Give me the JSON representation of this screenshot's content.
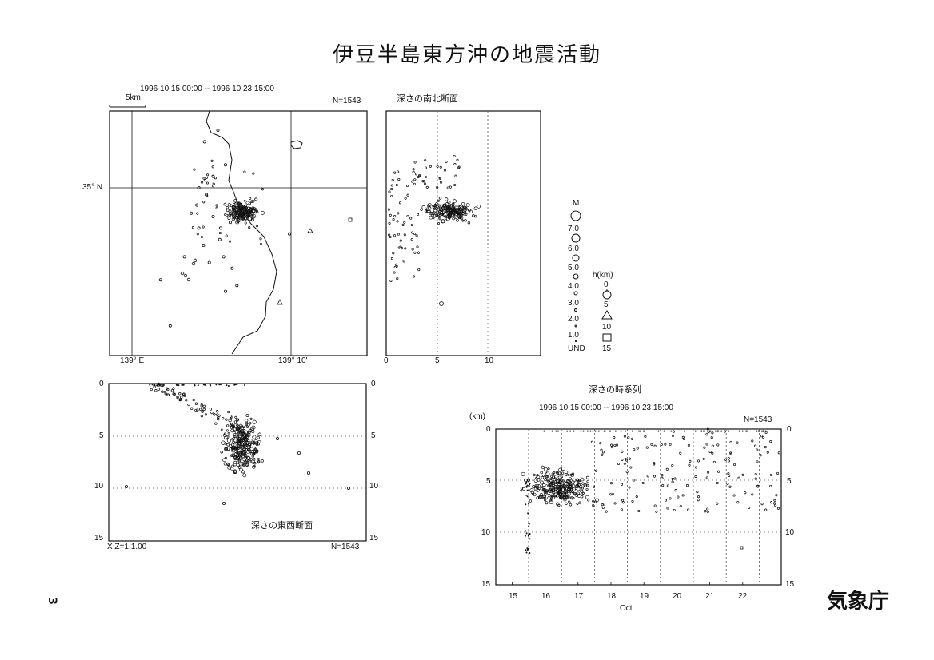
{
  "page": {
    "title": "伊豆半島東方沖の地震活動",
    "agency": "気象庁",
    "page_number": "3"
  },
  "colors": {
    "ink": "#111111",
    "paper": "#ffffff",
    "grid": "#555555"
  },
  "chart_data": [
    {
      "type": "scatter",
      "panel": "epicenter-map",
      "period": "1996 10 15 00:00 -- 1996 10 23 15:00",
      "count": "N=1543",
      "scale_bar": "5km",
      "lat_label": "35° N",
      "lon_labels": [
        "139° E",
        "139° 10'"
      ],
      "points": [
        [
          139.085,
          35.01
        ],
        [
          139.07,
          35.0
        ],
        [
          139.076,
          35.04
        ],
        [
          139.068,
          34.985
        ],
        [
          139.09,
          35.05
        ],
        [
          139.098,
          35.02
        ],
        [
          139.103,
          34.97
        ],
        [
          139.092,
          34.955
        ],
        [
          139.081,
          34.935
        ],
        [
          139.075,
          34.95
        ],
        [
          139.096,
          34.94
        ],
        [
          139.11,
          34.915
        ],
        [
          139.165,
          34.96
        ],
        [
          139.13,
          34.99
        ],
        [
          139.04,
          34.88
        ],
        [
          139.03,
          34.92
        ],
        [
          139.055,
          34.94
        ],
        [
          139.062,
          34.978
        ],
        [
          139.105,
          34.93
        ],
        [
          139.07,
          34.965
        ],
        [
          139.085,
          34.975
        ],
        [
          139.098,
          34.91
        ],
        [
          139.093,
          34.965
        ],
        [
          139.078,
          34.994
        ]
      ]
    },
    {
      "type": "scatter",
      "panel": "ns-cross-section",
      "title": "深さの南北断面",
      "x_ticks": [
        "0",
        "5",
        "10"
      ],
      "xlim": [
        0,
        15
      ]
    },
    {
      "type": "scatter",
      "panel": "ew-cross-section",
      "title": "深さの東西断面",
      "scale_note": "X Z=1:1.00",
      "count": "N=1543",
      "y_ticks": [
        "0",
        "5",
        "10",
        "15"
      ],
      "ylim": [
        0,
        15
      ]
    },
    {
      "type": "scatter",
      "panel": "depth-time-series",
      "title": "深さの時系列",
      "period": "1996 10 15 00:00 -- 1996 10 23 15:00",
      "count": "N=1543",
      "ylabel": "(km)",
      "y_ticks": [
        "0",
        "5",
        "10",
        "15"
      ],
      "x_ticks": [
        "15",
        "16",
        "17",
        "18",
        "19",
        "20",
        "21",
        "22"
      ],
      "xlabel": "Oct",
      "ylim": [
        0,
        15
      ]
    }
  ],
  "legend": {
    "magnitude_title": "M",
    "magnitudes": [
      "7.0",
      "6.0",
      "5.0",
      "4.0",
      "3.0",
      "2.0",
      "1.0",
      "UND"
    ],
    "depth_title": "h(km)",
    "depths": [
      "0",
      "5",
      "10",
      "15"
    ]
  }
}
